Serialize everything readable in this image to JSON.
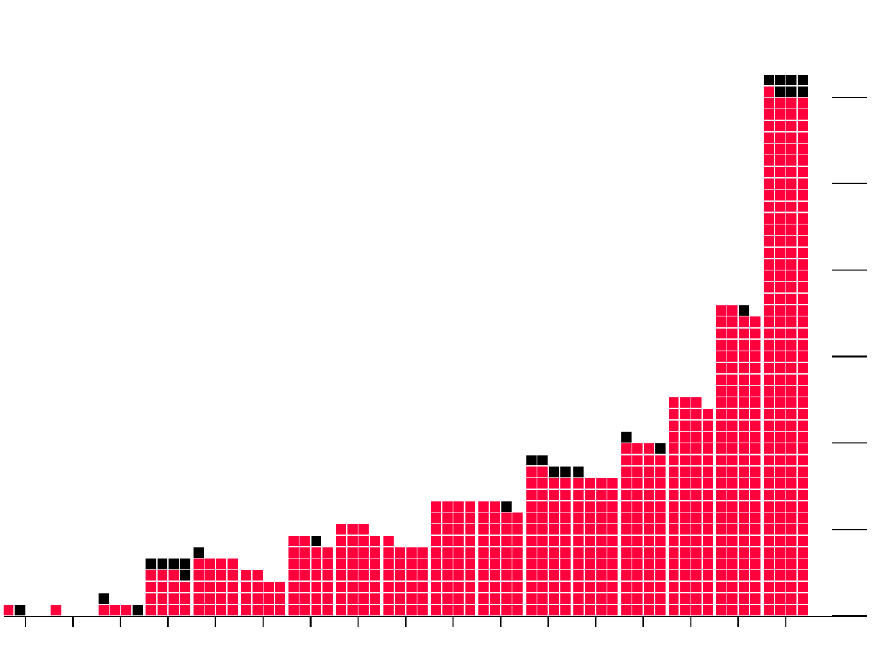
{
  "chart_data": {
    "type": "waffle",
    "categories": [
      null,
      null,
      null,
      null,
      null,
      null,
      null,
      null,
      null,
      null,
      null,
      null,
      null,
      null,
      null,
      null,
      null
    ],
    "series": [
      {
        "color": "#ff003c",
        "values": [
          1,
          1,
          3,
          15,
          20,
          14,
          26,
          31,
          25,
          40,
          38,
          50,
          48,
          59,
          75,
          106,
          181
        ]
      },
      {
        "color": "#000000",
        "values": [
          1,
          0,
          2,
          5,
          1,
          0,
          1,
          0,
          0,
          0,
          1,
          4,
          1,
          2,
          0,
          1,
          7
        ]
      }
    ],
    "units_per_row": 4,
    "ylim": [
      0,
      180
    ],
    "yticks": [
      0,
      30,
      60,
      90,
      120,
      150,
      180
    ]
  }
}
